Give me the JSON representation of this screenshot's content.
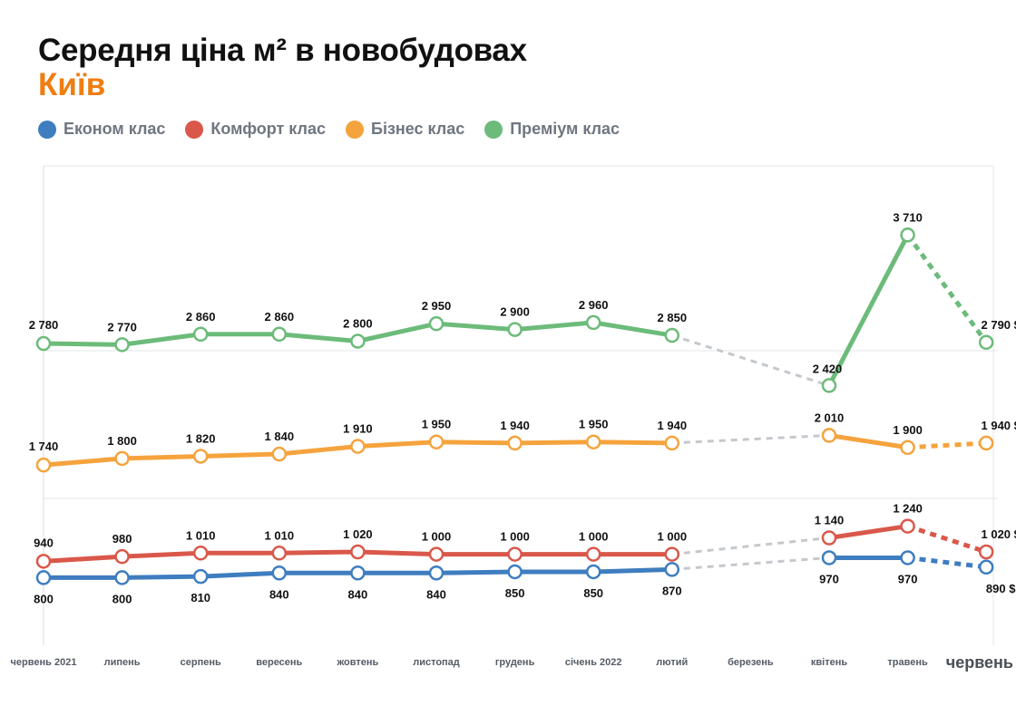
{
  "chart_data": {
    "type": "line",
    "title": "Середня ціна м² в новобудовах",
    "subtitle": "Київ",
    "categories": [
      "червень 2021",
      "липень",
      "серпень",
      "вересень",
      "жовтень",
      "листопад",
      "грудень",
      "січень 2022",
      "лютий",
      "березень",
      "квітень",
      "травень",
      "червень"
    ],
    "highlighted_category": "червень",
    "series": [
      {
        "name": "Економ клас",
        "color": "#3e7dbf",
        "values": [
          800,
          800,
          810,
          840,
          840,
          840,
          850,
          850,
          870,
          null,
          970,
          970,
          890
        ],
        "labels": [
          "800",
          "800",
          "810",
          "840",
          "840",
          "840",
          "850",
          "850",
          "870",
          null,
          "970",
          "970",
          "890 $"
        ],
        "label_position": "below"
      },
      {
        "name": "Комфорт клас",
        "color": "#d9584a",
        "values": [
          940,
          980,
          1010,
          1010,
          1020,
          1000,
          1000,
          1000,
          1000,
          null,
          1140,
          1240,
          1020
        ],
        "labels": [
          "940",
          "980",
          "1 010",
          "1 010",
          "1 020",
          "1 000",
          "1 000",
          "1 000",
          "1 000",
          null,
          "1 140",
          "1 240",
          "1 020 $"
        ],
        "label_position": "above"
      },
      {
        "name": "Бізнес клас",
        "color": "#f5a33d",
        "values": [
          1740,
          1800,
          1820,
          1840,
          1910,
          1950,
          1940,
          1950,
          1940,
          null,
          2010,
          1900,
          1940
        ],
        "labels": [
          "1 740",
          "1 800",
          "1 820",
          "1 840",
          "1 910",
          "1 950",
          "1 940",
          "1 950",
          "1 940",
          null,
          "2 010",
          "1 900",
          "1 940 $"
        ],
        "label_position": "above"
      },
      {
        "name": "Преміум клас",
        "color": "#6cbb7a",
        "values": [
          2780,
          2770,
          2860,
          2860,
          2800,
          2950,
          2900,
          2960,
          2850,
          null,
          2420,
          3710,
          2790
        ],
        "labels": [
          "2 780",
          "2 770",
          "2 860",
          "2 860",
          "2 800",
          "2 950",
          "2 900",
          "2 960",
          "2 850",
          null,
          "2 420",
          "3 710",
          "2 790 $"
        ],
        "label_position": "above"
      }
    ],
    "missing_data_category": "березень",
    "gap_line_color": "#c5c8cc",
    "last_segment_style": "dashed",
    "grid": "horizontal",
    "legend_position": "top-left"
  }
}
